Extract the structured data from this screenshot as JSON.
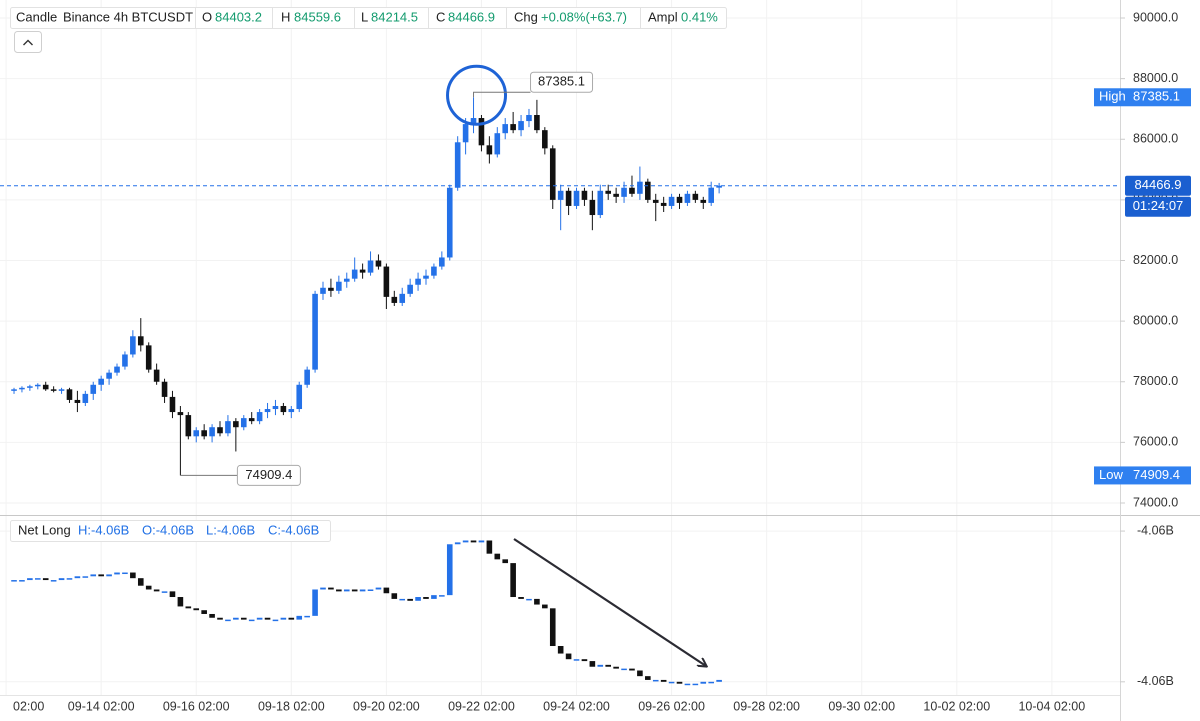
{
  "chart_data": [
    {
      "type": "candlestick",
      "title": "Candle",
      "subtitle": "Binance 4h BTCUSDT",
      "ohlc_labels": [
        "O",
        "H",
        "L",
        "C"
      ],
      "change_label": "Chg",
      "change": "+0.08%(+63.7)",
      "amplitude_label": "Ampl",
      "amplitude": "0.41%",
      "high_label": "High",
      "low_label": "Low",
      "countdown": "01:24:07",
      "up_color": "#2471e8",
      "down_color": "#111111",
      "grid": true,
      "xlim": [
        -1.77,
        139.6
      ],
      "xticks": [
        {
          "value": -1,
          "label": "02:00"
        },
        {
          "value": 11,
          "label": "09-14 02:00"
        },
        {
          "value": 23,
          "label": "09-16 02:00"
        },
        {
          "value": 35,
          "label": "09-18 02:00"
        },
        {
          "value": 47,
          "label": "09-20 02:00"
        },
        {
          "value": 59,
          "label": "09-22 02:00"
        },
        {
          "value": 71,
          "label": "09-24 02:00"
        },
        {
          "value": 83,
          "label": "09-26 02:00"
        },
        {
          "value": 95,
          "label": "09-28 02:00"
        },
        {
          "value": 107,
          "label": "09-30 02:00"
        },
        {
          "value": 119,
          "label": "10-02 02:00"
        },
        {
          "value": 131,
          "label": "10-04 02:00"
        }
      ],
      "ylim": [
        73604,
        90594
      ],
      "yticks": [
        {
          "value": 74000,
          "label": "74000.0"
        },
        {
          "value": 76000,
          "label": "76000.0"
        },
        {
          "value": 78000,
          "label": "78000.0"
        },
        {
          "value": 80000,
          "label": "80000.0"
        },
        {
          "value": 82000,
          "label": "82000.0"
        },
        {
          "value": 84000,
          "label": "84000.0"
        },
        {
          "value": 86000,
          "label": "86000.0"
        },
        {
          "value": 88000,
          "label": "88000.0"
        },
        {
          "value": 90000,
          "label": "90000.0"
        }
      ],
      "open": [
        77700,
        77750,
        77800,
        77850,
        77900,
        77750,
        77700,
        77750,
        77400,
        77300,
        77600,
        77900,
        78100,
        78300,
        78500,
        78900,
        79500,
        79200,
        78400,
        78000,
        77500,
        77000,
        76900,
        76200,
        76400,
        76200,
        76500,
        76300,
        76700,
        76500,
        76800,
        76700,
        77000,
        77100,
        77200,
        77000,
        77100,
        77900,
        78400,
        80900,
        81100,
        81000,
        81300,
        81400,
        81700,
        81600,
        82000,
        81800,
        80800,
        80600,
        80900,
        81200,
        81400,
        81500,
        81800,
        82100,
        84400,
        85900,
        86500,
        86700,
        85800,
        85500,
        86200,
        86500,
        86300,
        86600,
        86800,
        86300,
        85700,
        84000,
        84300,
        83800,
        84300,
        84000,
        83500,
        84300,
        84200,
        84100,
        84400,
        84200,
        84600,
        84000,
        83900,
        83800,
        84100,
        83900,
        84200,
        84000,
        83900,
        84403.2
      ],
      "high": [
        77800,
        77850,
        77900,
        77950,
        78000,
        77850,
        77800,
        77800,
        77700,
        77700,
        78000,
        78200,
        78400,
        78600,
        79000,
        79700,
        80100,
        79300,
        78600,
        78100,
        77700,
        77200,
        77000,
        76500,
        76600,
        76600,
        76700,
        76900,
        76800,
        76900,
        77000,
        77100,
        77300,
        77400,
        77300,
        77200,
        78000,
        78500,
        81000,
        81300,
        81400,
        81500,
        81600,
        82100,
        81900,
        82300,
        82200,
        81900,
        81000,
        81100,
        81400,
        81600,
        81700,
        81900,
        82300,
        84500,
        86100,
        86700,
        87385.1,
        86800,
        86100,
        86400,
        86700,
        86900,
        86800,
        87000,
        87300,
        86400,
        85800,
        84500,
        84400,
        84400,
        84400,
        84300,
        84500,
        84500,
        84400,
        84600,
        84800,
        85100,
        84700,
        84200,
        84100,
        84200,
        84200,
        84300,
        84300,
        84100,
        84600,
        84559.6
      ],
      "low": [
        77600,
        77650,
        77700,
        77750,
        77700,
        77650,
        77600,
        77300,
        77000,
        77200,
        77400,
        77700,
        77900,
        78200,
        78400,
        78800,
        79000,
        78300,
        77900,
        77300,
        76800,
        74909.4,
        76100,
        76000,
        76100,
        76000,
        76200,
        76200,
        75700,
        76400,
        76600,
        76600,
        76800,
        76900,
        76900,
        76800,
        77000,
        77800,
        78300,
        80700,
        80800,
        80900,
        81100,
        81300,
        81400,
        81500,
        81700,
        80400,
        80500,
        80500,
        80800,
        81000,
        81200,
        81400,
        81700,
        82000,
        84300,
        85500,
        86200,
        85600,
        85200,
        85400,
        86000,
        86200,
        86100,
        86400,
        86200,
        85500,
        83700,
        83000,
        83500,
        83700,
        83800,
        83000,
        83400,
        84000,
        83900,
        83900,
        84100,
        84000,
        83900,
        83300,
        83600,
        83700,
        83700,
        83800,
        83900,
        83700,
        83800,
        84214.5
      ],
      "close": [
        77750,
        77800,
        77850,
        77900,
        77750,
        77700,
        77750,
        77400,
        77300,
        77600,
        77900,
        78100,
        78300,
        78500,
        78900,
        79500,
        79200,
        78400,
        78000,
        77500,
        77000,
        76900,
        76200,
        76400,
        76200,
        76500,
        76300,
        76700,
        76500,
        76800,
        76700,
        77000,
        77100,
        77200,
        77000,
        77100,
        77900,
        78400,
        80900,
        81100,
        81000,
        81300,
        81400,
        81700,
        81600,
        82000,
        81800,
        80800,
        80600,
        80900,
        81200,
        81400,
        81500,
        81800,
        82100,
        84400,
        85900,
        86500,
        86700,
        85800,
        85500,
        86200,
        86500,
        86300,
        86600,
        86800,
        86300,
        85700,
        84000,
        84300,
        83800,
        84300,
        84000,
        83500,
        84300,
        84200,
        84100,
        84400,
        84200,
        84600,
        84000,
        83900,
        83800,
        84100,
        83900,
        84200,
        84000,
        83900,
        84403.2,
        84466.9
      ]
    },
    {
      "type": "candlestick",
      "title": "Net Long",
      "legend": [
        "H:-4.06B",
        "O:-4.06B",
        "L:-4.06B",
        "C:-4.06B"
      ],
      "ylim": [
        -4.0652,
        -4.0557
      ],
      "yticks": [
        {
          "value": -4.0645,
          "label": "-4.06B"
        },
        {
          "value": -4.0565,
          "label": "-4.06B"
        }
      ],
      "open": [
        -4.0591,
        -4.0591,
        -4.0591,
        -4.059,
        -4.059,
        -4.0591,
        -4.0591,
        -4.059,
        -4.059,
        -4.0589,
        -4.0589,
        -4.0588,
        -4.0589,
        -4.0588,
        -4.0587,
        -4.0587,
        -4.059,
        -4.0594,
        -4.0596,
        -4.0597,
        -4.0597,
        -4.06,
        -4.0605,
        -4.0606,
        -4.0607,
        -4.0609,
        -4.0611,
        -4.0612,
        -4.0612,
        -4.0611,
        -4.0612,
        -4.0612,
        -4.0611,
        -4.0612,
        -4.0612,
        -4.0611,
        -4.0612,
        -4.061,
        -4.061,
        -4.0596,
        -4.0595,
        -4.0596,
        -4.0597,
        -4.0596,
        -4.0597,
        -4.0596,
        -4.0596,
        -4.0595,
        -4.0598,
        -4.0601,
        -4.0601,
        -4.0602,
        -4.06,
        -4.0601,
        -4.0599,
        -4.0599,
        -4.0572,
        -4.0571,
        -4.057,
        -4.0571,
        -4.057,
        -4.0577,
        -4.058,
        -4.0582,
        -4.06,
        -4.0601,
        -4.0601,
        -4.0604,
        -4.0606,
        -4.0626,
        -4.063,
        -4.0633,
        -4.0633,
        -4.0634,
        -4.0637,
        -4.0636,
        -4.0637,
        -4.0638,
        -4.0638,
        -4.0639,
        -4.0642,
        -4.0644,
        -4.0644,
        -4.0645,
        -4.0645,
        -4.0646,
        -4.0646,
        -4.0646,
        -4.0645,
        -4.0645
      ],
      "close": [
        -4.0591,
        -4.0591,
        -4.059,
        -4.059,
        -4.0591,
        -4.0591,
        -4.059,
        -4.059,
        -4.0589,
        -4.0589,
        -4.0588,
        -4.0589,
        -4.0588,
        -4.0587,
        -4.0587,
        -4.059,
        -4.0594,
        -4.0596,
        -4.0597,
        -4.0597,
        -4.06,
        -4.0605,
        -4.0606,
        -4.0607,
        -4.0609,
        -4.0611,
        -4.0612,
        -4.0612,
        -4.0611,
        -4.0612,
        -4.0612,
        -4.0611,
        -4.0612,
        -4.0612,
        -4.0611,
        -4.0612,
        -4.061,
        -4.061,
        -4.0596,
        -4.0595,
        -4.0596,
        -4.0597,
        -4.0596,
        -4.0597,
        -4.0596,
        -4.0596,
        -4.0595,
        -4.0598,
        -4.0601,
        -4.0601,
        -4.0602,
        -4.06,
        -4.0601,
        -4.0599,
        -4.0599,
        -4.0572,
        -4.0571,
        -4.057,
        -4.0571,
        -4.057,
        -4.0577,
        -4.058,
        -4.0582,
        -4.06,
        -4.0601,
        -4.0601,
        -4.0604,
        -4.0606,
        -4.0626,
        -4.063,
        -4.0633,
        -4.0633,
        -4.0634,
        -4.0637,
        -4.0636,
        -4.0637,
        -4.0638,
        -4.0638,
        -4.0639,
        -4.0642,
        -4.0644,
        -4.0644,
        -4.0645,
        -4.0645,
        -4.0646,
        -4.0646,
        -4.0646,
        -4.0645,
        -4.0645,
        -4.0644
      ]
    }
  ]
}
